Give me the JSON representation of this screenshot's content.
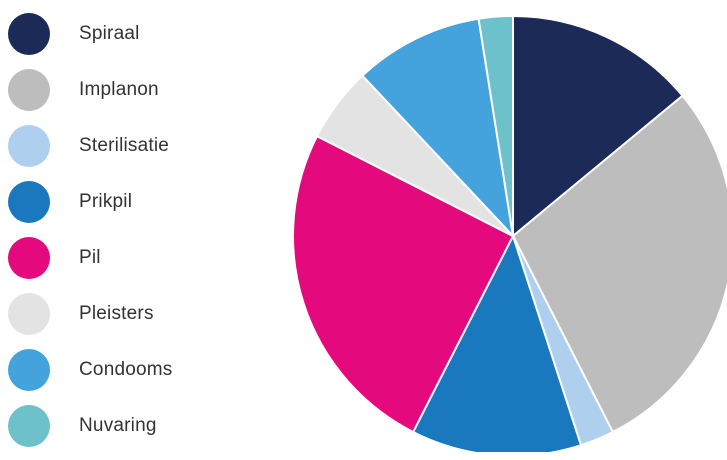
{
  "chart_data": {
    "type": "pie",
    "title": "",
    "legend_position": "left",
    "slices": [
      {
        "label": "Spiraal",
        "value": 14.0,
        "color": "#1b2a57"
      },
      {
        "label": "Implanon",
        "value": 28.5,
        "color": "#bdbdbd"
      },
      {
        "label": "Sterilisatie",
        "value": 2.5,
        "color": "#aed0ee"
      },
      {
        "label": "Prikpil",
        "value": 12.5,
        "color": "#1a78be"
      },
      {
        "label": "Pil",
        "value": 25.0,
        "color": "#e40a7d"
      },
      {
        "label": "Pleisters",
        "value": 5.5,
        "color": "#e3e3e3"
      },
      {
        "label": "Condooms",
        "value": 9.5,
        "color": "#44a2dc"
      },
      {
        "label": "Nuvaring",
        "value": 2.5,
        "color": "#6cc1cb"
      }
    ]
  }
}
